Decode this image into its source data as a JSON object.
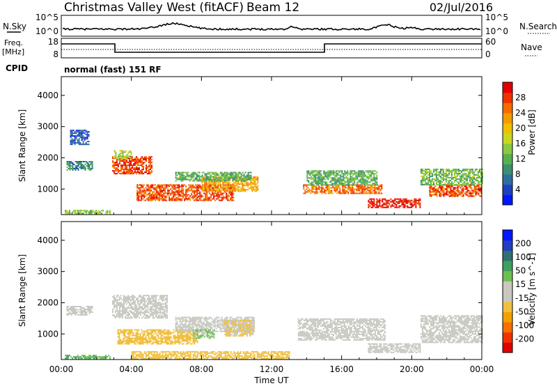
{
  "header": {
    "title": "Christmas Valley West (fitACF)",
    "beam": "Beam 12",
    "date": "02/Jul/2016"
  },
  "param_panel": {
    "nsky_label": "N.Sky",
    "nsky_ticks": [
      "10^5",
      "10^0"
    ],
    "nsearch_label": "N.Search",
    "nsearch_ticks": [
      "10^5",
      "10^0"
    ],
    "freq_label": "Freq.",
    "freq_unit": "[MHz]",
    "freq_ticks": [
      "18",
      "8"
    ],
    "nave_label": "Nave",
    "nave_ticks": [
      "60",
      "0"
    ],
    "cpid_label": "CPID",
    "cpid_text": "normal (fast) 151 RF"
  },
  "chart_data": [
    {
      "type": "heatmap",
      "name": "power",
      "ylabel": "Slant Range [km]",
      "xlabel": "",
      "x_ticks": [
        "00:00",
        "04:00",
        "08:00",
        "12:00",
        "16:00",
        "20:00",
        "00:00"
      ],
      "y_ticks": [
        1000,
        2000,
        3000,
        4000
      ],
      "xlim": [
        0,
        24
      ],
      "ylim": [
        180,
        4600
      ],
      "colorbar": {
        "label": "Power [dB]",
        "ticks": [
          "28",
          "24",
          "20",
          "16",
          "12",
          "8",
          "4"
        ],
        "range": [
          0,
          32
        ],
        "colors": [
          "#0018ff",
          "#2040c0",
          "#2e6e9e",
          "#3c9070",
          "#58b050",
          "#8cc840",
          "#c8d820",
          "#f0c000",
          "#f29b00",
          "#f56a00",
          "#f23000",
          "#e00000"
        ]
      },
      "regions": [
        {
          "t0": 0.2,
          "t1": 2.8,
          "r0": 220,
          "r1": 330,
          "v": 14
        },
        {
          "t0": 2.9,
          "t1": 5.2,
          "r0": 1500,
          "r1": 2050,
          "v": 28
        },
        {
          "t0": 3.0,
          "t1": 4.0,
          "r0": 1950,
          "r1": 2250,
          "v": 16
        },
        {
          "t0": 4.3,
          "t1": 9.8,
          "r0": 650,
          "r1": 1150,
          "v": 27
        },
        {
          "t0": 8.0,
          "t1": 11.2,
          "r0": 950,
          "r1": 1400,
          "v": 22
        },
        {
          "t0": 6.5,
          "t1": 10.8,
          "r0": 1250,
          "r1": 1550,
          "v": 12
        },
        {
          "t0": 13.8,
          "t1": 18.3,
          "r0": 850,
          "r1": 1150,
          "v": 25
        },
        {
          "t0": 14.0,
          "t1": 18.0,
          "r0": 1150,
          "r1": 1600,
          "v": 12
        },
        {
          "t0": 17.5,
          "t1": 20.5,
          "r0": 400,
          "r1": 700,
          "v": 30
        },
        {
          "t0": 21.0,
          "t1": 24.0,
          "r0": 750,
          "r1": 1150,
          "v": 27
        },
        {
          "t0": 20.5,
          "t1": 24.0,
          "r0": 1150,
          "r1": 1650,
          "v": 13
        },
        {
          "t0": 0.3,
          "t1": 1.8,
          "r0": 1600,
          "r1": 1900,
          "v": 9
        },
        {
          "t0": 0.5,
          "t1": 1.6,
          "r0": 2450,
          "r1": 2900,
          "v": 5
        }
      ]
    },
    {
      "type": "heatmap",
      "name": "velocity",
      "ylabel": "Slant Range [km]",
      "xlabel": "Time UT",
      "x_ticks": [
        "00:00",
        "04:00",
        "08:00",
        "12:00",
        "16:00",
        "20:00",
        "00:00"
      ],
      "y_ticks": [
        1000,
        2000,
        3000,
        4000
      ],
      "xlim": [
        0,
        24
      ],
      "ylim": [
        180,
        4600
      ],
      "colorbar": {
        "label": "Velocity [m s^-1]",
        "ticks": [
          "200",
          "100",
          "50",
          "15",
          "-15",
          "-50",
          "-100",
          "-200"
        ],
        "range": [
          -250,
          250
        ],
        "colors": [
          "#e00000",
          "#f23000",
          "#f57000",
          "#f2a000",
          "#f0c040",
          "#c8c8c0",
          "#c8c8c0",
          "#6cc050",
          "#40a060",
          "#307070",
          "#2040c0",
          "#0018ff"
        ]
      },
      "regions": [
        {
          "t0": 0.2,
          "t1": 2.8,
          "r0": 220,
          "r1": 330,
          "v": 80
        },
        {
          "t0": 2.9,
          "t1": 6.0,
          "r0": 1500,
          "r1": 2250,
          "v": 0
        },
        {
          "t0": 3.2,
          "t1": 7.8,
          "r0": 700,
          "r1": 1150,
          "v": -60
        },
        {
          "t0": 6.5,
          "t1": 11.0,
          "r0": 1100,
          "r1": 1550,
          "v": 0
        },
        {
          "t0": 7.5,
          "t1": 8.7,
          "r0": 850,
          "r1": 1150,
          "v": 40
        },
        {
          "t0": 9.3,
          "t1": 11.0,
          "r0": 950,
          "r1": 1450,
          "v": -40
        },
        {
          "t0": 4.0,
          "t1": 13.0,
          "r0": 200,
          "r1": 450,
          "v": -60
        },
        {
          "t0": 13.5,
          "t1": 18.5,
          "r0": 800,
          "r1": 1500,
          "v": 0
        },
        {
          "t0": 17.5,
          "t1": 20.5,
          "r0": 400,
          "r1": 700,
          "v": -5
        },
        {
          "t0": 20.5,
          "t1": 24.0,
          "r0": 750,
          "r1": 1600,
          "v": 0
        },
        {
          "t0": 0.3,
          "t1": 1.8,
          "r0": 1600,
          "r1": 1900,
          "v": 0
        }
      ]
    }
  ]
}
